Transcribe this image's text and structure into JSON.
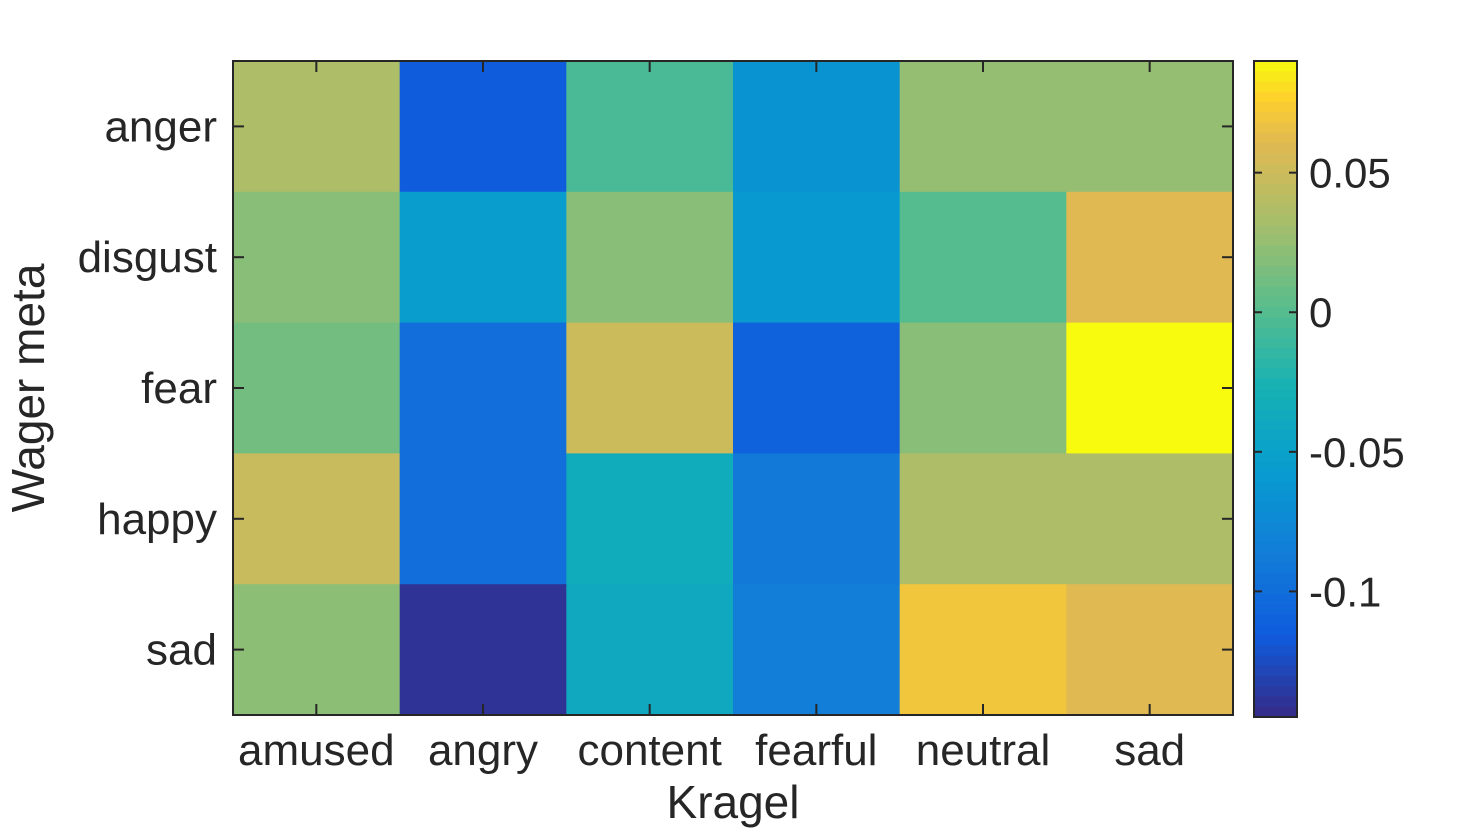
{
  "chart_data": {
    "type": "heatmap",
    "title": "",
    "xlabel": "Kragel",
    "ylabel": "Wager meta",
    "x_categories": [
      "amused",
      "angry",
      "content",
      "fearful",
      "neutral",
      "sad"
    ],
    "y_categories": [
      "anger",
      "disgust",
      "fear",
      "happy",
      "sad"
    ],
    "values": [
      [
        0.035,
        -0.115,
        -0.005,
        -0.065,
        0.025,
        0.025
      ],
      [
        0.02,
        -0.055,
        0.02,
        -0.06,
        0.0,
        0.06
      ],
      [
        0.012,
        -0.1,
        0.05,
        -0.11,
        0.02,
        0.09
      ],
      [
        0.048,
        -0.1,
        -0.035,
        -0.09,
        0.035,
        0.035
      ],
      [
        0.022,
        -0.14,
        -0.04,
        -0.085,
        0.07,
        0.06
      ]
    ],
    "colorbar": {
      "min": -0.145,
      "max": 0.09,
      "ticks": [
        0.05,
        0,
        -0.05,
        -0.1
      ],
      "tick_labels": [
        "0.05",
        "0",
        "-0.05",
        "-0.1"
      ]
    },
    "colormap": "parula"
  }
}
